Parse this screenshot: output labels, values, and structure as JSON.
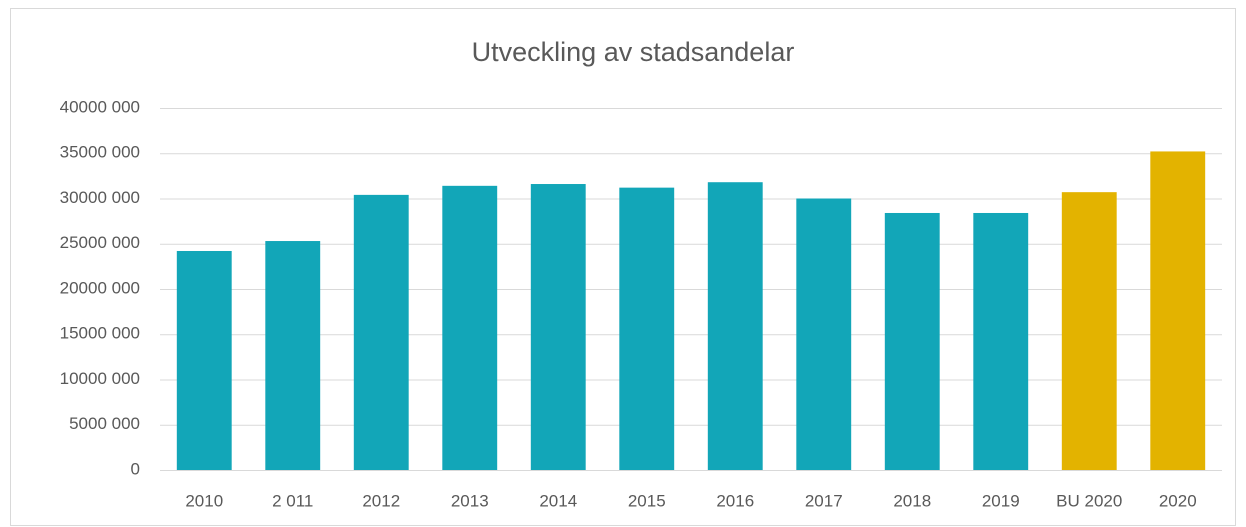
{
  "chart_data": {
    "type": "bar",
    "title": "Utveckling av stadsandelar",
    "categories": [
      "2010",
      "2 011",
      "2012",
      "2013",
      "2014",
      "2015",
      "2016",
      "2017",
      "2018",
      "2019",
      "BU 2020",
      "2020"
    ],
    "values": [
      24200000,
      25300000,
      30400000,
      31400000,
      31600000,
      31200000,
      31800000,
      30000000,
      28400000,
      28400000,
      30700000,
      35200000
    ],
    "colors": [
      "#12a6b8",
      "#12a6b8",
      "#12a6b8",
      "#12a6b8",
      "#12a6b8",
      "#12a6b8",
      "#12a6b8",
      "#12a6b8",
      "#12a6b8",
      "#12a6b8",
      "#e3b300",
      "#e3b300"
    ],
    "ylim": [
      0,
      40000000
    ],
    "yticks": [
      0,
      {
        "value": 5000000,
        "label": "5000 000"
      },
      {
        "value": 10000000,
        "label": "10000 000"
      },
      {
        "value": 15000000,
        "label": "15000 000"
      },
      {
        "value": 20000000,
        "label": "20000 000"
      },
      {
        "value": 25000000,
        "label": "25000 000"
      },
      {
        "value": 30000000,
        "label": "30000 000"
      },
      {
        "value": 35000000,
        "label": "35000 000"
      },
      {
        "value": 40000000,
        "label": "40000 000"
      }
    ],
    "grid": true
  }
}
